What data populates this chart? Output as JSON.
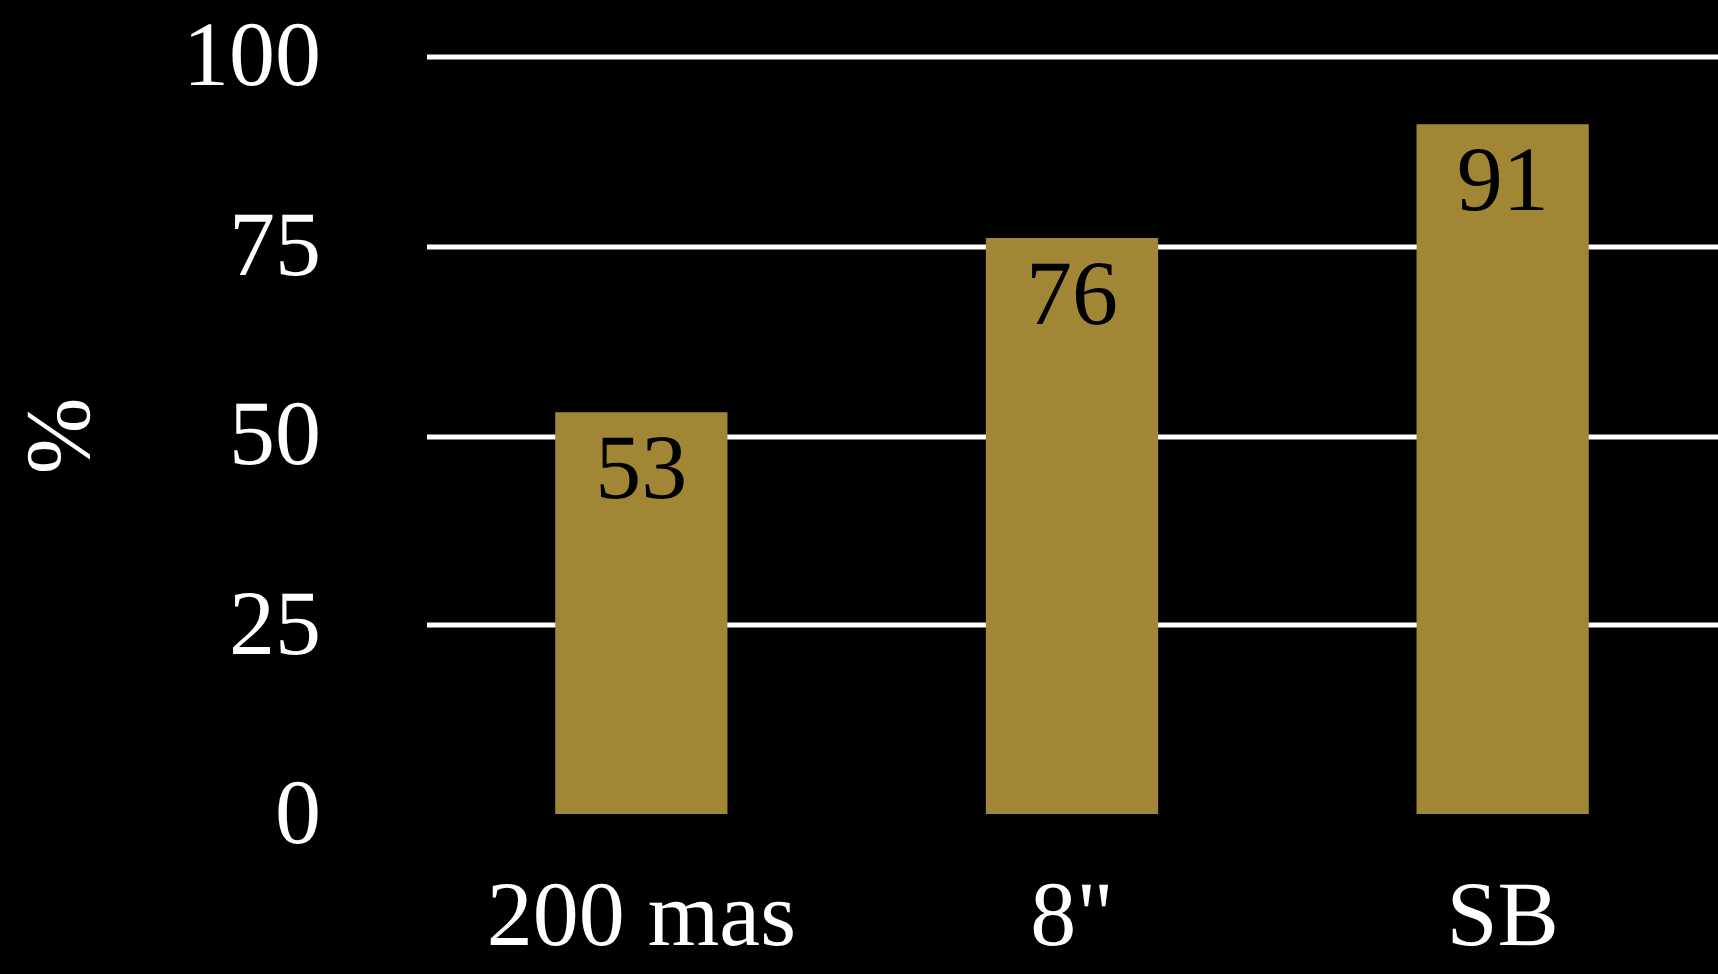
{
  "chart_data": {
    "type": "bar",
    "ylabel": "%",
    "categories": [
      "200 mas",
      "8\"",
      "SB"
    ],
    "values": [
      53,
      76,
      91
    ],
    "color": "#a18735",
    "ylim": [
      0,
      100
    ],
    "yticks": [
      0,
      25,
      50,
      75,
      100
    ],
    "grid": true,
    "data_labels": true
  }
}
